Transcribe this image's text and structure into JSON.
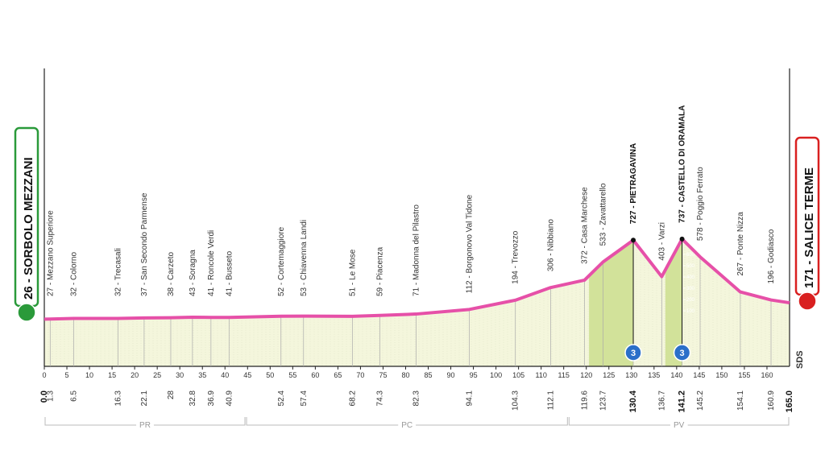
{
  "chart_data": {
    "type": "area",
    "x": [
      {
        "value": 0,
        "label": "0.0"
      },
      1.3,
      6.5,
      16.3,
      22.1,
      28.0,
      32.8,
      36.9,
      40.9,
      52.4,
      57.4,
      68.2,
      74.3,
      82.3,
      94.1,
      104.3,
      112.1,
      119.6,
      123.7,
      130.4,
      136.7,
      141.2,
      145.2,
      154.1,
      160.9,
      {
        "value": 165,
        "label": "165.0"
      }
    ],
    "values": [
      26,
      27,
      32,
      32,
      37,
      38,
      43,
      41,
      41,
      52,
      53,
      51,
      59,
      71,
      112,
      194,
      306,
      372,
      533,
      727,
      403,
      737,
      578,
      267,
      196,
      171
    ],
    "labels": [
      "26 - SORBOLO MEZZANI",
      "27 - Mezzano Superiore",
      "32 - Colorno",
      "32 - Trecasali",
      "37 - San Secondo Parmense",
      "38 - Carzeto",
      "43 - Soragna",
      "41 - Roncole Verdi",
      "41 - Busseto",
      "52 - Cortemaggiore",
      "53 - Chiavenna Landi",
      "51 - Le Mose",
      "59 - Piacenza",
      "71 - Madonna del Pilastro",
      "112 - Borgonovo Val Tidone",
      "194 - Trevozzo",
      "306 - Nibbiano",
      "372 - Casa Marchese",
      "533 - Zavattarello",
      "727 - PIETRAGAVINA",
      "403 - Varzi",
      "737 - CASTELLO DI ORAMALA",
      "578 - Poggio Ferrato",
      "267 - Ponte Nizza",
      "196 - Godiasco",
      "171 - SALICE TERME"
    ],
    "xlim": [
      0,
      165
    ],
    "xticks": [
      0,
      5,
      10,
      15,
      20,
      25,
      30,
      35,
      40,
      45,
      50,
      55,
      60,
      65,
      70,
      75,
      80,
      85,
      90,
      95,
      100,
      105,
      110,
      115,
      120,
      125,
      130,
      135,
      140,
      145,
      150,
      155,
      160
    ],
    "climbs": [
      {
        "from": 120.6,
        "km": 130.4,
        "category": 3
      },
      {
        "from": 137.5,
        "km": 141.2,
        "category": 3
      }
    ],
    "climb_scale_ticks": [
      100,
      200,
      300,
      400,
      500,
      600,
      700
    ],
    "provinces": [
      {
        "name": "PR",
        "from": 0,
        "to": 44.6
      },
      {
        "name": "PC",
        "from": 44.6,
        "to": 116
      },
      {
        "name": "PV",
        "from": 116,
        "to": 165
      }
    ],
    "logo": "SDS",
    "color": "#e650a8",
    "fill": "#f4f6dc",
    "climb_fill": "#d2e29a"
  }
}
